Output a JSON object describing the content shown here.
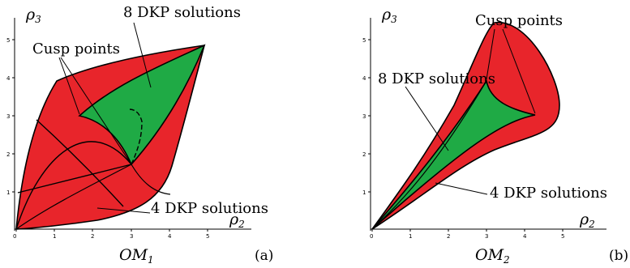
{
  "figure": {
    "panels": [
      {
        "id": "a",
        "x_axis": {
          "symbol": "ρ",
          "subscript": "2",
          "ticks": [
            "0",
            "1",
            "2",
            "3",
            "4",
            "5"
          ]
        },
        "y_axis": {
          "symbol": "ρ",
          "subscript": "3",
          "ticks": [
            "1",
            "2",
            "3",
            "4",
            "5"
          ]
        },
        "caption": {
          "main": "OM",
          "subscript": "1"
        },
        "tag": "(a)",
        "annotations": {
          "solutions_8": "8 DKP solutions",
          "cusp": "Cusp points",
          "solutions_4": "4 DKP solutions"
        }
      },
      {
        "id": "b",
        "x_axis": {
          "symbol": "ρ",
          "subscript": "2",
          "ticks": [
            "0",
            "1",
            "2",
            "3",
            "4",
            "5"
          ]
        },
        "y_axis": {
          "symbol": "ρ",
          "subscript": "3",
          "ticks": [
            "1",
            "2",
            "3",
            "4",
            "5"
          ]
        },
        "caption": {
          "main": "OM",
          "subscript": "2"
        },
        "tag": "(b)",
        "annotations": {
          "cusp": "Cusp points",
          "solutions_8": "8 DKP solutions",
          "solutions_4": "4 DKP solutions"
        }
      }
    ],
    "colors": {
      "region_4": "#e8252b",
      "region_8": "#1faa45",
      "ink": "#000000"
    }
  }
}
